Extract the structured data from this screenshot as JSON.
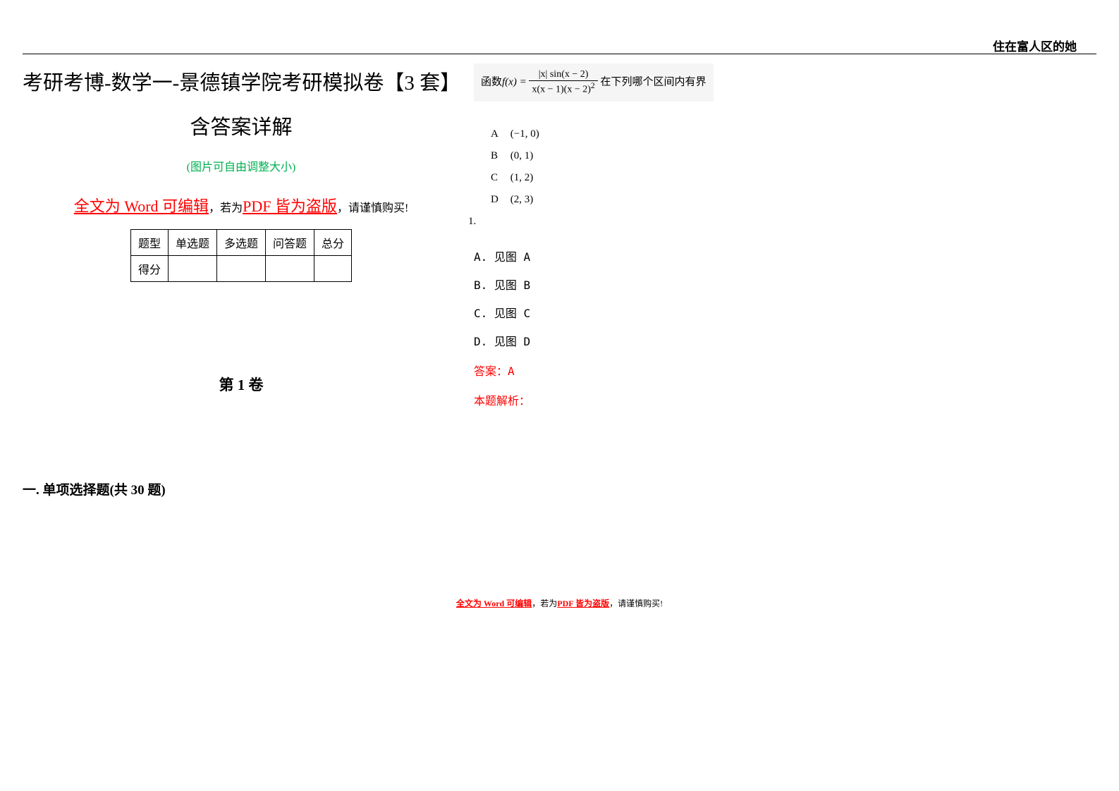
{
  "header": {
    "right_text": "住在富人区的她"
  },
  "left": {
    "title_line1": "考研考博-数学一-景德镇学院考研模拟卷【3 套】",
    "title_line2": "含答案详解",
    "subtitle": "(图片可自由调整大小)",
    "warning_word": "全文为 Word 可编辑",
    "warning_mid": "，若为",
    "warning_pdf": "PDF 皆为盗版",
    "warning_end": "，请谨慎购买!",
    "table": {
      "headers": [
        "题型",
        "单选题",
        "多选题",
        "问答题",
        "总分"
      ],
      "row_label": "得分"
    },
    "volume": "第 1 卷",
    "section": "一. 单项选择题(共 30 题)"
  },
  "right": {
    "question_prefix": "函数",
    "func_name": "f(x) = ",
    "frac_num": "|x| sin(x − 2)",
    "frac_den_left": "x(x − 1)(x − 2)",
    "frac_den_exp": "2",
    "question_suffix": " 在下列哪个区间内有界",
    "options": [
      {
        "label": "A",
        "value": "(−1, 0)"
      },
      {
        "label": "B",
        "value": "(0, 1)"
      },
      {
        "label": "C",
        "value": "(1, 2)"
      },
      {
        "label": "D",
        "value": "(2, 3)"
      }
    ],
    "q_number": "1.",
    "answer_opts": [
      "A. 见图 A",
      "B. 见图 B",
      "C. 见图 C",
      "D. 见图 D"
    ],
    "answer": "答案：A",
    "analysis": "本题解析："
  },
  "footer": {
    "word": "全文为 Word 可编辑",
    "mid": "，若为",
    "pdf": "PDF 皆为盗版",
    "end": "，请谨慎购买!"
  },
  "colors": {
    "red": "#ff0000",
    "green": "#00b050",
    "text": "#000000",
    "bg": "#ffffff",
    "question_bg": "#f5f5f5"
  }
}
